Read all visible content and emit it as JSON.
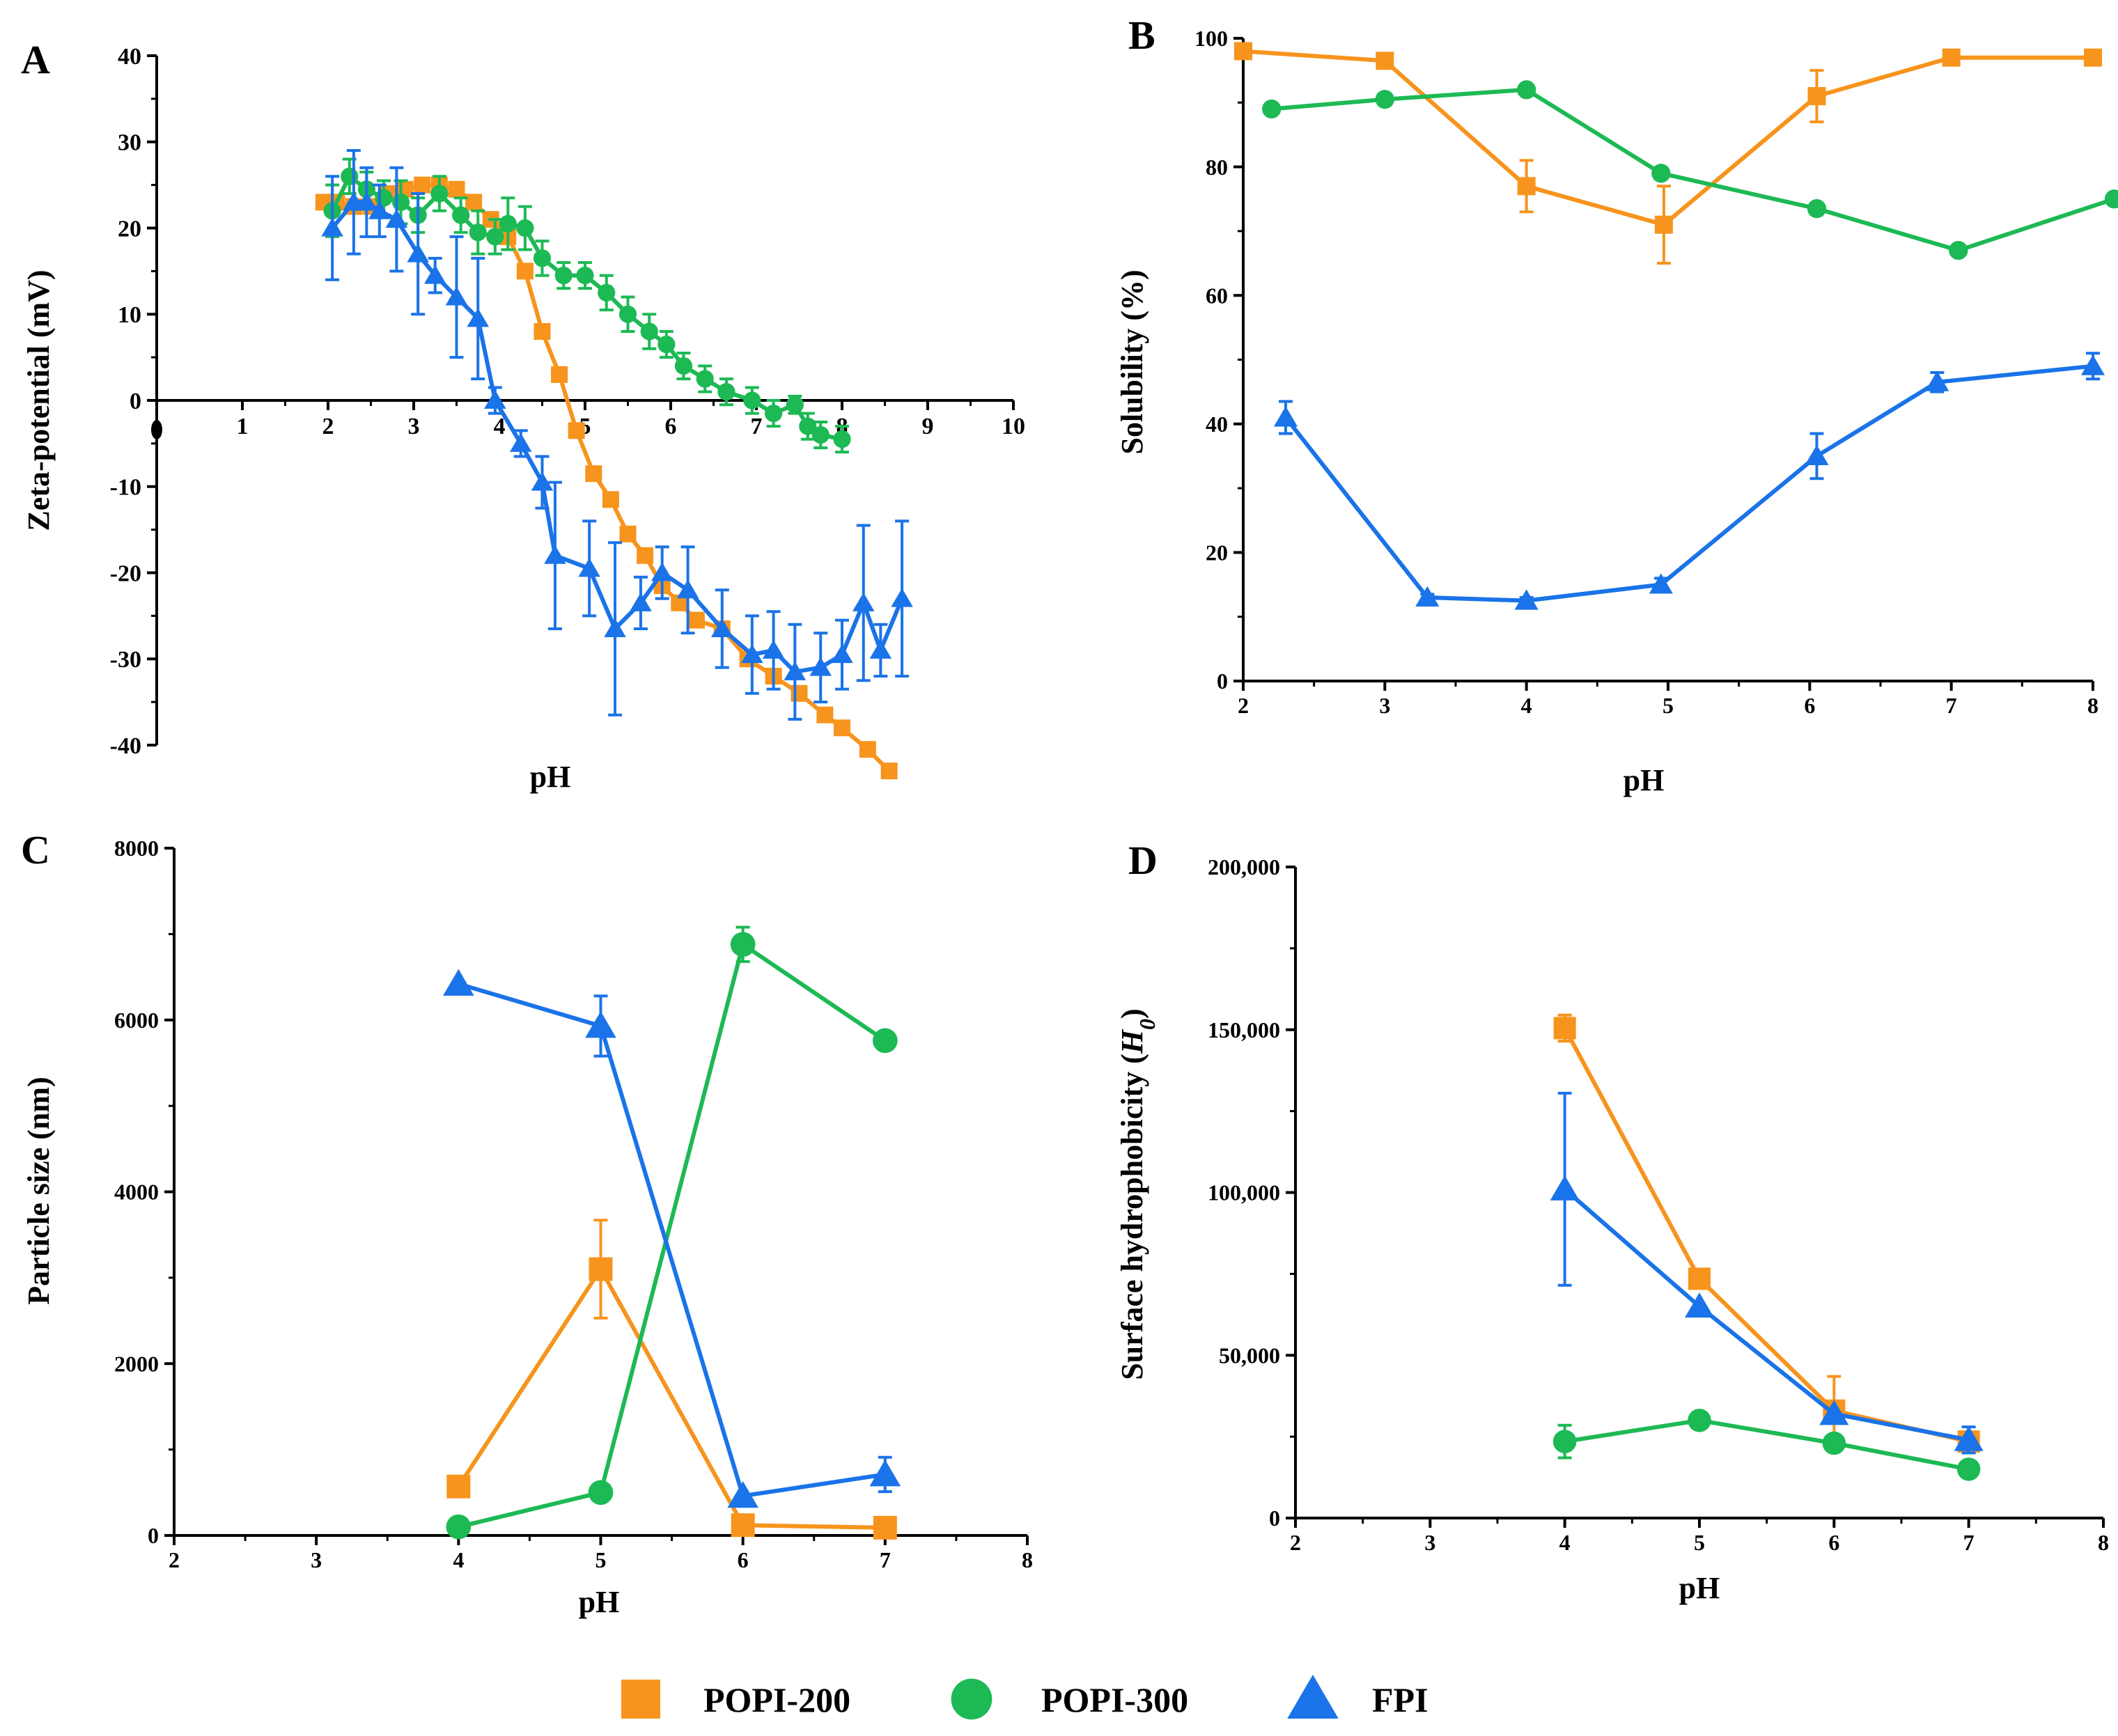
{
  "legend": {
    "items": [
      {
        "name": "POPI-200",
        "color": "#F7941D",
        "marker": "square-marker"
      },
      {
        "name": "POPI-300",
        "color": "#1DB954",
        "marker": "circle-marker"
      },
      {
        "name": "FPI",
        "color": "#1A73E8",
        "marker": "triangle-marker"
      }
    ]
  },
  "chart_data": [
    {
      "type": "line",
      "panel": "A",
      "title": "",
      "xlabel": "pH",
      "ylabel": "Zeta-potential (mV)",
      "xlim": [
        0,
        10
      ],
      "ylim": [
        -40,
        40
      ],
      "x_tick_labels": [
        "1",
        "2",
        "3",
        "4",
        "5",
        "6",
        "7",
        "8",
        "9",
        "10"
      ],
      "y_tick_labels": [
        "40",
        "30",
        "20",
        "10",
        "0",
        "-10",
        "-20",
        "-30",
        "-40"
      ],
      "series": [
        {
          "name": "POPI-200",
          "x": [
            1.95,
            2.1,
            2.3,
            2.5,
            2.7,
            2.9,
            3.1,
            3.3,
            3.5,
            3.7,
            3.9,
            4.1,
            4.3,
            4.5,
            4.7,
            4.9,
            5.1,
            5.3,
            5.5,
            5.7,
            5.9,
            6.1,
            6.3,
            6.6,
            6.9,
            7.2,
            7.5,
            7.8,
            8.0,
            8.3,
            8.55
          ],
          "y": [
            23,
            23,
            22.5,
            22.5,
            24,
            24.5,
            25,
            25,
            24.5,
            23,
            21,
            19,
            15,
            8,
            3,
            -3.5,
            -8.5,
            -11.5,
            -15.5,
            -18,
            -21.5,
            -23.5,
            -25.5,
            -26.5,
            -30,
            -32,
            -34,
            -36.5,
            -38,
            -40.5,
            -43
          ],
          "err": [
            0,
            0,
            0,
            0,
            0,
            0,
            0,
            0,
            0,
            0,
            0,
            0,
            0,
            0,
            0,
            0,
            0,
            0,
            0,
            0,
            0,
            0,
            0,
            0,
            0,
            0,
            0,
            0,
            0,
            0,
            0
          ]
        },
        {
          "name": "POPI-300",
          "x": [
            2.05,
            2.25,
            2.45,
            2.65,
            2.85,
            3.05,
            3.3,
            3.55,
            3.75,
            3.95,
            4.1,
            4.3,
            4.5,
            4.75,
            5.0,
            5.25,
            5.5,
            5.75,
            5.95,
            6.15,
            6.4,
            6.65,
            6.95,
            7.2,
            7.45,
            7.6,
            7.75,
            8.0
          ],
          "y": [
            22,
            26,
            24.5,
            23.5,
            23,
            21.5,
            24,
            21.5,
            19.5,
            19,
            20.5,
            20,
            16.5,
            14.5,
            14.5,
            12.5,
            10,
            8,
            6.5,
            4,
            2.5,
            1,
            0,
            -1.5,
            -0.5,
            -3,
            -4,
            -4.5
          ],
          "err": [
            3,
            2,
            2,
            2,
            2.5,
            2,
            2,
            2,
            2.5,
            2,
            3,
            2.5,
            2,
            1.5,
            1.5,
            2,
            2,
            2,
            1.5,
            1.5,
            1.5,
            1.5,
            1.5,
            1.5,
            1,
            1.5,
            1.5,
            1.5
          ]
        },
        {
          "name": "FPI",
          "x": [
            2.05,
            2.3,
            2.45,
            2.6,
            2.8,
            3.05,
            3.25,
            3.5,
            3.75,
            3.95,
            4.25,
            4.5,
            4.65,
            5.05,
            5.35,
            5.65,
            5.9,
            6.2,
            6.6,
            6.95,
            7.2,
            7.45,
            7.75,
            8.0,
            8.25,
            8.45,
            8.7
          ],
          "y": [
            20,
            23,
            23,
            22,
            21,
            17,
            14.5,
            12,
            9.5,
            0,
            -5,
            -9.5,
            -18,
            -19.5,
            -26.5,
            -23.5,
            -20,
            -22,
            -26.5,
            -29.5,
            -29,
            -31.5,
            -31,
            -29.5,
            -23.5,
            -29,
            -23
          ],
          "err": [
            6,
            6,
            4,
            3,
            6,
            7,
            2,
            7,
            7,
            1.5,
            1.5,
            3,
            8.5,
            5.5,
            10,
            3,
            3,
            5,
            4.5,
            4.5,
            4.5,
            5.5,
            4,
            4,
            9,
            3,
            9
          ]
        }
      ]
    },
    {
      "type": "line",
      "panel": "B",
      "title": "",
      "xlabel": "pH",
      "ylabel": "Solubility (%)",
      "xlim": [
        2,
        8
      ],
      "ylim": [
        0,
        100
      ],
      "x_tick_labels": [
        "2",
        "3",
        "4",
        "5",
        "6",
        "7",
        "8"
      ],
      "y_tick_labels": [
        "100",
        "80",
        "60",
        "40",
        "20",
        "0"
      ],
      "series": [
        {
          "name": "POPI-200",
          "x": [
            2.0,
            3.0,
            4.0,
            4.97,
            6.05,
            7.0,
            8.0
          ],
          "y": [
            98,
            96.5,
            77,
            71,
            91,
            97,
            97
          ],
          "err": [
            0,
            0,
            4,
            6,
            4,
            0,
            0
          ]
        },
        {
          "name": "POPI-300",
          "x": [
            2.2,
            3.0,
            4.0,
            4.95,
            6.05,
            7.05,
            8.15
          ],
          "y": [
            89,
            90.5,
            92,
            79,
            73.5,
            67,
            75
          ],
          "err": [
            0.5,
            0.5,
            0.5,
            0.5,
            0.5,
            0.5,
            0.5
          ]
        },
        {
          "name": "FPI",
          "x": [
            2.3,
            3.3,
            4.0,
            4.95,
            6.05,
            6.9,
            8.0
          ],
          "y": [
            41,
            13,
            12.5,
            15,
            35,
            46.5,
            49
          ],
          "err": [
            2.5,
            0.5,
            0.5,
            1,
            3.5,
            1.5,
            2
          ]
        }
      ]
    },
    {
      "type": "line",
      "panel": "C",
      "title": "",
      "xlabel": "pH",
      "ylabel": "Particle size (nm)",
      "xlim": [
        2,
        8
      ],
      "ylim": [
        0,
        8000
      ],
      "x_tick_labels": [
        "2",
        "3",
        "4",
        "5",
        "6",
        "7",
        "8"
      ],
      "y_tick_labels": [
        "8000",
        "6000",
        "4000",
        "2000",
        "0"
      ],
      "series": [
        {
          "name": "POPI-200",
          "x": [
            4,
            5,
            6,
            7
          ],
          "y": [
            570,
            3100,
            120,
            90
          ],
          "err": [
            0,
            570,
            0,
            0
          ]
        },
        {
          "name": "POPI-300",
          "x": [
            4,
            5,
            6,
            7
          ],
          "y": [
            100,
            500,
            6880,
            5760
          ],
          "err": [
            0,
            0,
            200,
            0
          ]
        },
        {
          "name": "FPI",
          "x": [
            4,
            5,
            6,
            7
          ],
          "y": [
            6420,
            5930,
            460,
            710
          ],
          "err": [
            0,
            350,
            0,
            200
          ]
        }
      ]
    },
    {
      "type": "line",
      "panel": "D",
      "title": "",
      "xlabel": "pH",
      "ylabel": "Surface hydrophobicity (H0)",
      "xlim": [
        2,
        8
      ],
      "ylim": [
        0,
        200000
      ],
      "x_tick_labels": [
        "2",
        "3",
        "4",
        "5",
        "6",
        "7",
        "8"
      ],
      "y_tick_labels": [
        "200,000",
        "150,000",
        "100,000",
        "50,000",
        "0"
      ],
      "series": [
        {
          "name": "POPI-200",
          "x": [
            4,
            5,
            6,
            7
          ],
          "y": [
            150500,
            73500,
            33000,
            23500
          ],
          "err": [
            4000,
            0,
            10500,
            0
          ]
        },
        {
          "name": "POPI-300",
          "x": [
            4,
            5,
            6,
            7
          ],
          "y": [
            23500,
            30000,
            23000,
            15000
          ],
          "err": [
            5000,
            0,
            0,
            0
          ]
        },
        {
          "name": "FPI",
          "x": [
            4,
            5,
            6,
            7
          ],
          "y": [
            101000,
            65000,
            32000,
            24000
          ],
          "err": [
            29500,
            0,
            0,
            4000
          ]
        }
      ]
    }
  ],
  "panels": {
    "A": {
      "letter": "A"
    },
    "B": {
      "letter": "B"
    },
    "C": {
      "letter": "C"
    },
    "D": {
      "letter": "D"
    }
  }
}
